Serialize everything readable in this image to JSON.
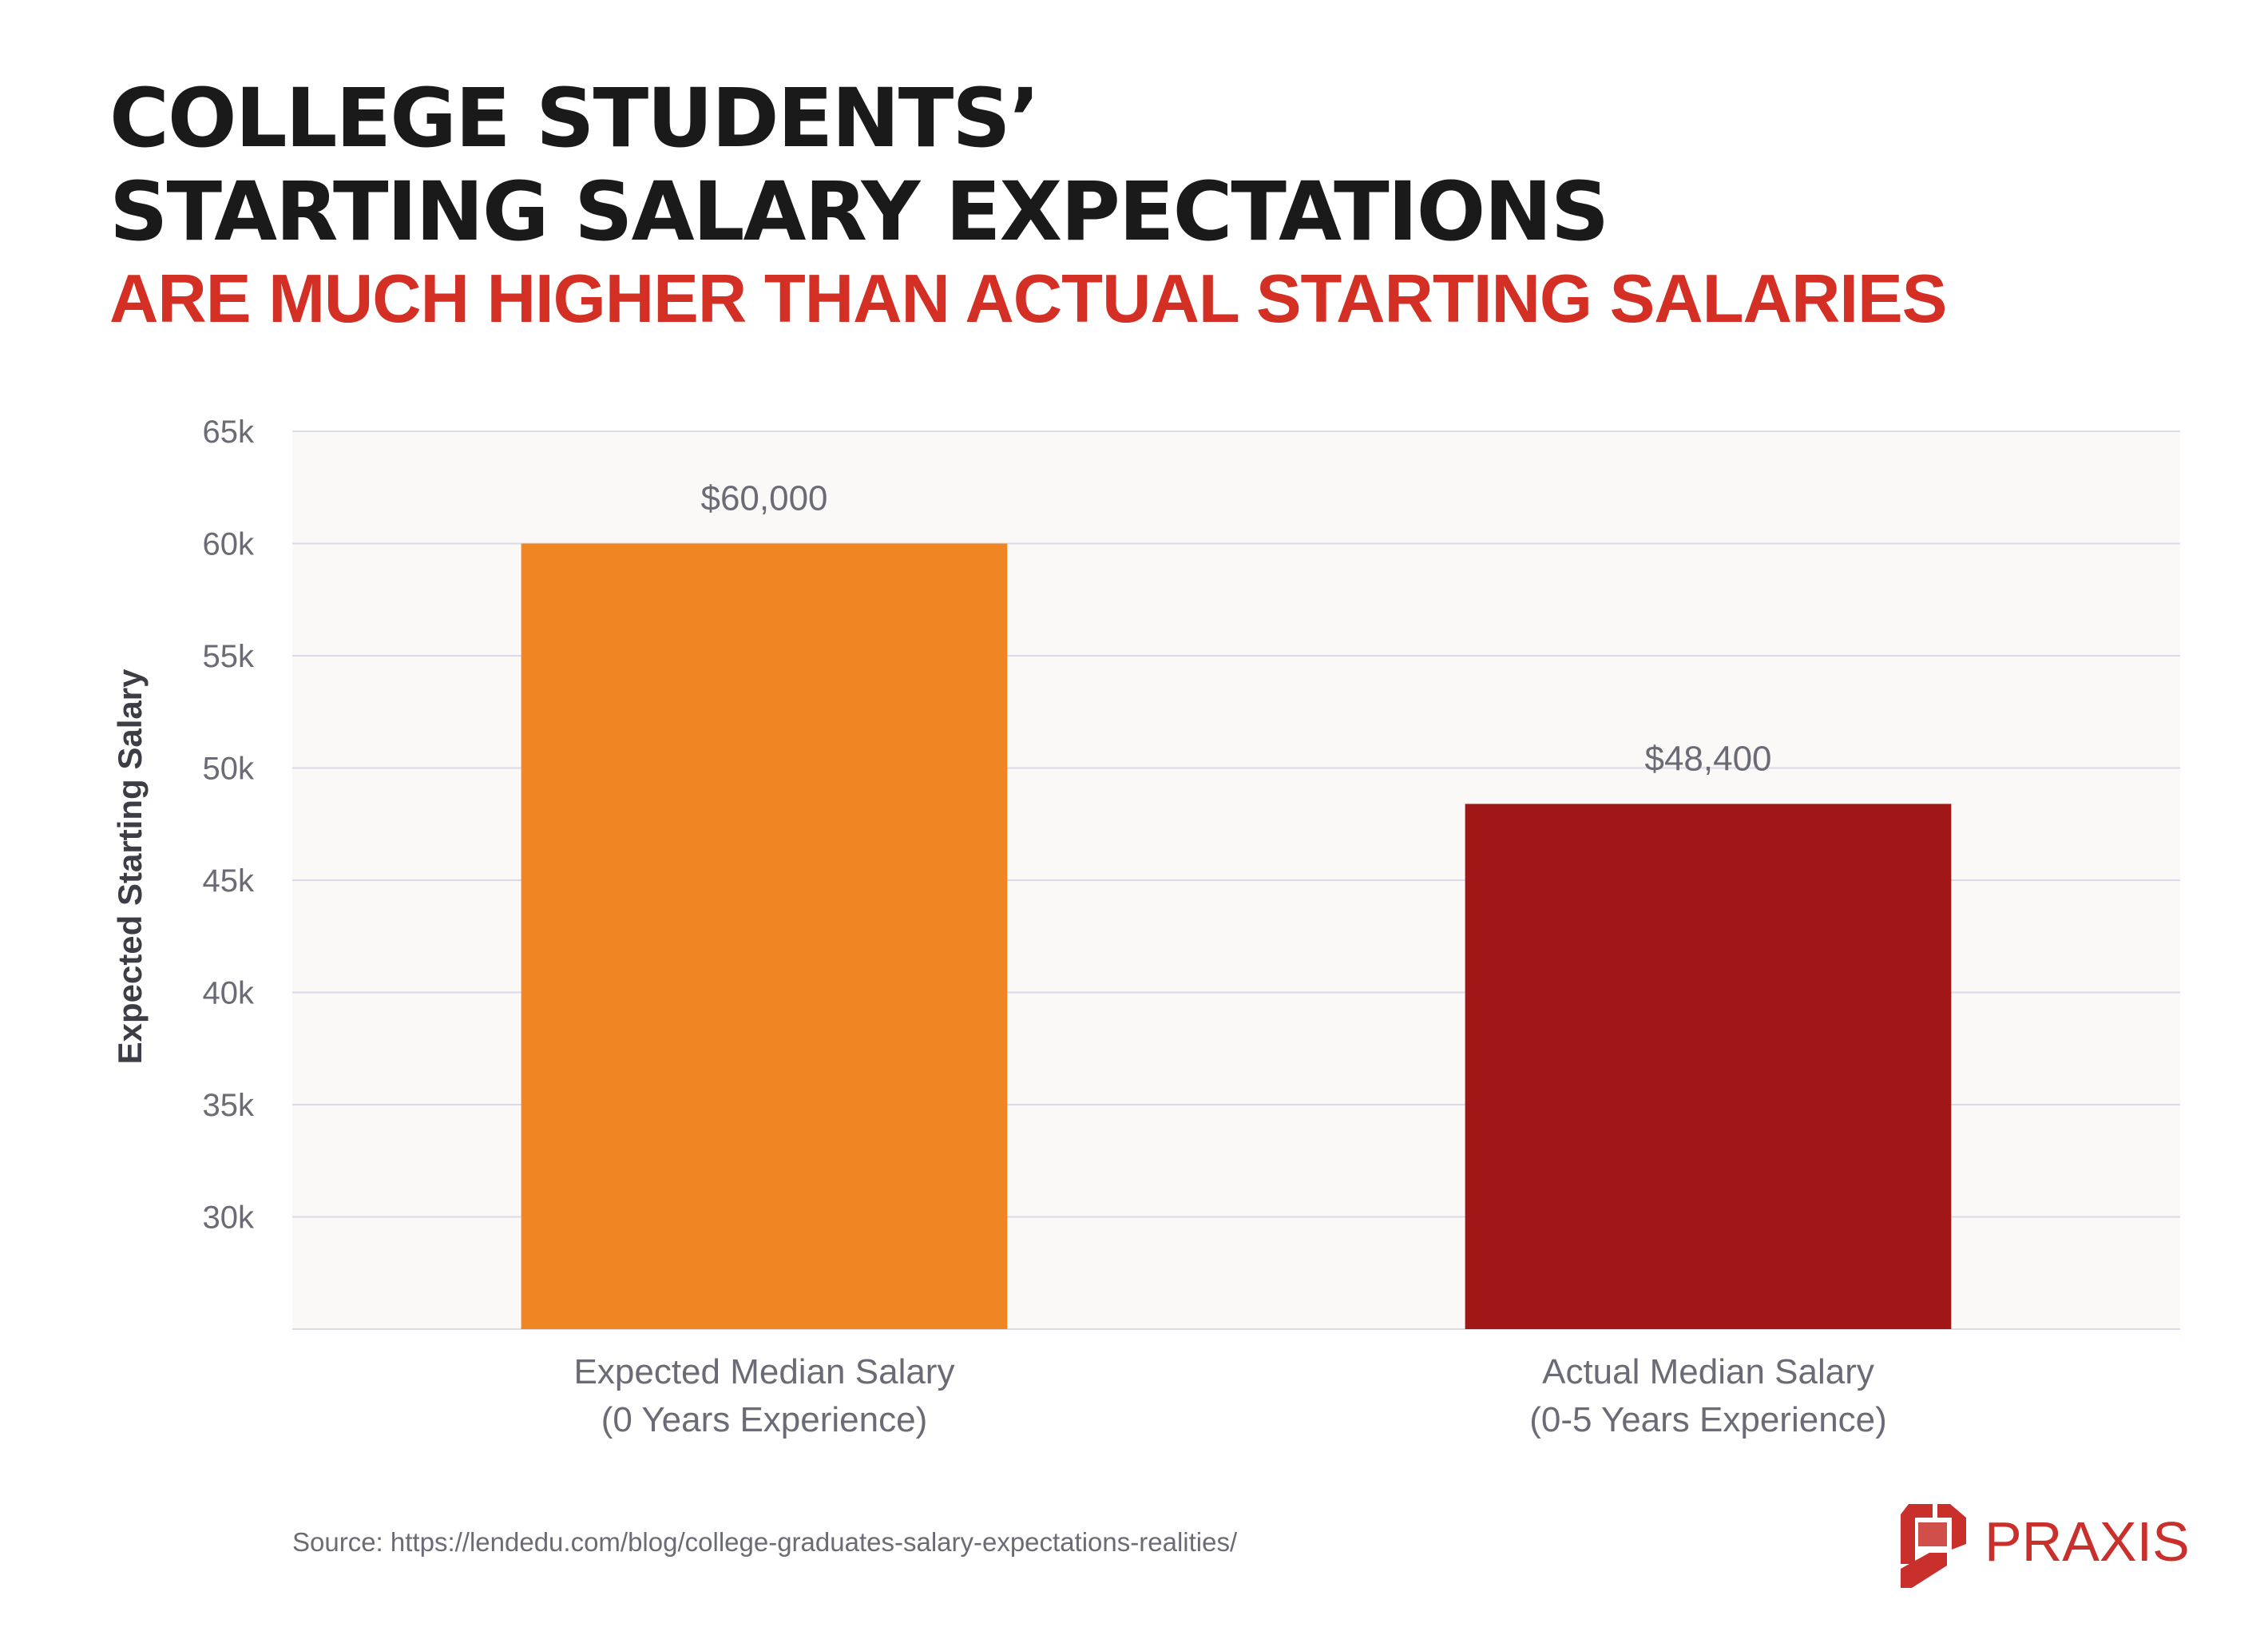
{
  "header": {
    "title_line1": "COLLEGE STUDENTS’",
    "title_line2": "STARTING SALARY EXPECTATIONS",
    "subtitle": "ARE MUCH HIGHER THAN ACTUAL STARTING SALARIES"
  },
  "chart_data": {
    "type": "bar",
    "title": "COLLEGE STUDENTS’ STARTING SALARY EXPECTATIONS",
    "subtitle": "ARE MUCH HIGHER THAN ACTUAL STARTING SALARIES",
    "xlabel": "",
    "ylabel": "Expected Starting Salary",
    "ylim": [
      25000,
      65000
    ],
    "yticks": [
      {
        "value": 30000,
        "label": "30k"
      },
      {
        "value": 35000,
        "label": "35k"
      },
      {
        "value": 40000,
        "label": "40k"
      },
      {
        "value": 45000,
        "label": "45k"
      },
      {
        "value": 50000,
        "label": "50k"
      },
      {
        "value": 55000,
        "label": "55k"
      },
      {
        "value": 60000,
        "label": "60k"
      },
      {
        "value": 65000,
        "label": "65k"
      }
    ],
    "grid": true,
    "legend": "none",
    "bars": [
      {
        "category_lines": [
          "Expected Median Salary",
          "(0 Years Experience)"
        ],
        "value": 60000,
        "value_label": "$60,000",
        "color": "#ef8623"
      },
      {
        "category_lines": [
          "Actual Median Salary",
          "(0-5 Years Experience)"
        ],
        "value": 48400,
        "value_label": "$48,400",
        "color": "#a11717"
      }
    ]
  },
  "footer": {
    "source": "Source: https://lendedu.com/blog/college-graduates-salary-expectations-realities/",
    "logo_text": "PRAXIS",
    "logo_color": "#c9302c"
  }
}
